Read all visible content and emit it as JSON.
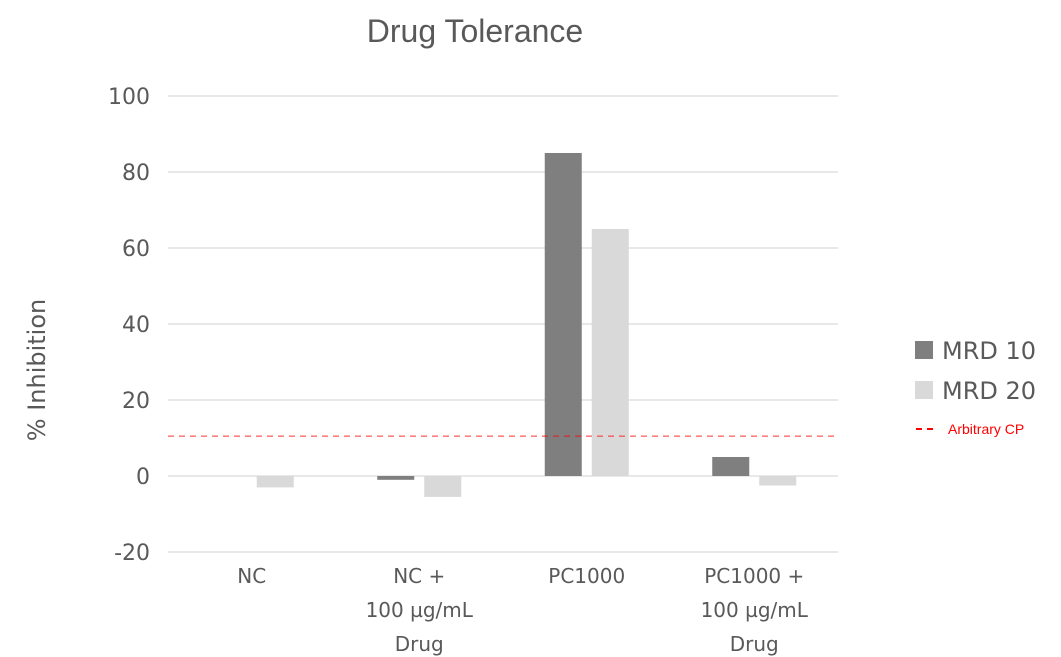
{
  "chart_data": {
    "type": "bar",
    "title": "Drug Tolerance",
    "ylabel": "% Inhibition",
    "xlabel": "",
    "ylim": [
      -20,
      100
    ],
    "yticks": [
      -20,
      0,
      20,
      40,
      60,
      80,
      100
    ],
    "grid": true,
    "legend_position": "right",
    "categories": [
      [
        "NC"
      ],
      [
        "NC +",
        "100 µg/mL",
        "Drug"
      ],
      [
        "PC1000"
      ],
      [
        "PC1000 +",
        "100 µg/mL",
        "Drug"
      ]
    ],
    "series": [
      {
        "name": "MRD 10",
        "color": "#7f7f7f",
        "values": [
          0,
          -1,
          85,
          5
        ]
      },
      {
        "name": "MRD 20",
        "color": "#d9d9d9",
        "values": [
          -3,
          -5.5,
          65,
          -2.5
        ]
      }
    ],
    "reference_line": {
      "name": "Arbitrary CP",
      "value": 10.5,
      "color": "#ff0000",
      "style": "dashed"
    }
  }
}
